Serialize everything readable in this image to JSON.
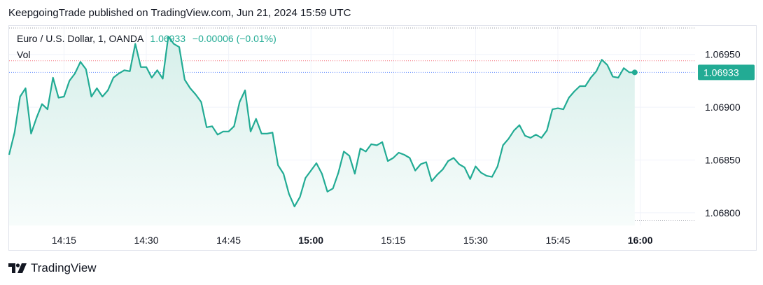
{
  "header": {
    "text": "KeepgoingTrade published on TradingView.com, Jun 21, 2024 15:59 UTC"
  },
  "legend": {
    "symbol": "Euro / U.S. Dollar, 1, OANDA",
    "price": "1.06933",
    "change": "−0.00006 (−0.01%)",
    "vol": "Vol"
  },
  "footer": {
    "brand": "TradingView",
    "logo_icon": "tradingview-logo-icon"
  },
  "colors": {
    "line": "#22ab94",
    "area_top": "#d6efea",
    "area_bottom": "#f7fcfb",
    "grid": "#f0f3fa",
    "text": "#131722",
    "ref_red": "#f23645",
    "ref_blue": "#2962ff"
  },
  "chart_data": {
    "type": "area",
    "title": "Euro / U.S. Dollar, 1, OANDA",
    "xlabel": "",
    "ylabel": "",
    "ylim": [
      1.06788,
      1.06977
    ],
    "xlim": [
      "14:05",
      "16:10"
    ],
    "x_ticks": [
      {
        "label": "14:15",
        "bold": false
      },
      {
        "label": "14:30",
        "bold": false
      },
      {
        "label": "14:45",
        "bold": false
      },
      {
        "label": "15:00",
        "bold": true
      },
      {
        "label": "15:15",
        "bold": false
      },
      {
        "label": "15:30",
        "bold": false
      },
      {
        "label": "15:45",
        "bold": false
      },
      {
        "label": "16:00",
        "bold": true
      }
    ],
    "y_ticks": [
      "1.06950",
      "1.06900",
      "1.06850",
      "1.06800"
    ],
    "last_price_label": "1.06933",
    "reference_lines": {
      "red": 1.06944,
      "blue": 1.06933,
      "top_dotted": 1.06975,
      "bottom_dotted": 1.06793
    },
    "grid": true,
    "series": [
      {
        "x": [
          "14:05",
          "14:06",
          "14:07",
          "14:08",
          "14:09",
          "14:10",
          "14:11",
          "14:12",
          "14:13",
          "14:14",
          "14:15",
          "14:16",
          "14:17",
          "14:18",
          "14:19",
          "14:20",
          "14:21",
          "14:22",
          "14:23",
          "14:24",
          "14:25",
          "14:26",
          "14:27",
          "14:28",
          "14:29",
          "14:30",
          "14:31",
          "14:32",
          "14:33",
          "14:34",
          "14:35",
          "14:36",
          "14:37",
          "14:38",
          "14:39",
          "14:40",
          "14:41",
          "14:42",
          "14:43",
          "14:44",
          "14:45",
          "14:46",
          "14:47",
          "14:48",
          "14:49",
          "14:50",
          "14:51",
          "14:52",
          "14:53",
          "14:54",
          "14:55",
          "14:56",
          "14:57",
          "14:58",
          "14:59",
          "15:00",
          "15:01",
          "15:02",
          "15:03",
          "15:04",
          "15:05",
          "15:06",
          "15:07",
          "15:08",
          "15:09",
          "15:10",
          "15:11",
          "15:12",
          "15:13",
          "15:14",
          "15:15",
          "15:16",
          "15:17",
          "15:18",
          "15:19",
          "15:20",
          "15:21",
          "15:22",
          "15:23",
          "15:24",
          "15:25",
          "15:26",
          "15:27",
          "15:28",
          "15:29",
          "15:30",
          "15:31",
          "15:32",
          "15:33",
          "15:34",
          "15:35",
          "15:36",
          "15:37",
          "15:38",
          "15:39",
          "15:40",
          "15:41",
          "15:42",
          "15:43",
          "15:44",
          "15:45",
          "15:46",
          "15:47",
          "15:48",
          "15:49",
          "15:50",
          "15:51",
          "15:52",
          "15:53",
          "15:54",
          "15:55",
          "15:56",
          "15:57",
          "15:58",
          "15:59"
        ],
        "values": [
          1.06855,
          1.06876,
          1.0691,
          1.06918,
          1.06875,
          1.0689,
          1.06903,
          1.06898,
          1.06928,
          1.06909,
          1.0691,
          1.06925,
          1.06932,
          1.06943,
          1.06936,
          1.0691,
          1.06918,
          1.0691,
          1.06916,
          1.06928,
          1.06932,
          1.06935,
          1.06934,
          1.0696,
          1.06938,
          1.06938,
          1.06928,
          1.06935,
          1.06927,
          1.06967,
          1.0696,
          1.06957,
          1.06926,
          1.06918,
          1.06912,
          1.06905,
          1.06881,
          1.06882,
          1.06874,
          1.06877,
          1.06877,
          1.06882,
          1.06905,
          1.06916,
          1.06877,
          1.06889,
          1.06875,
          1.06875,
          1.06876,
          1.06845,
          1.06837,
          1.06818,
          1.06806,
          1.06815,
          1.06833,
          1.0684,
          1.06847,
          1.06837,
          1.0682,
          1.06823,
          1.06838,
          1.06858,
          1.06854,
          1.06837,
          1.06861,
          1.06858,
          1.06865,
          1.06864,
          1.06867,
          1.06849,
          1.06852,
          1.06857,
          1.06855,
          1.06852,
          1.0684,
          1.06846,
          1.06848,
          1.0683,
          1.06836,
          1.06841,
          1.06849,
          1.06852,
          1.06846,
          1.06843,
          1.06832,
          1.06844,
          1.06838,
          1.06835,
          1.06834,
          1.06844,
          1.06864,
          1.0687,
          1.06878,
          1.06883,
          1.06873,
          1.06871,
          1.06874,
          1.06871,
          1.06878,
          1.06898,
          1.06899,
          1.06898,
          1.06909,
          1.06915,
          1.0692,
          1.0692,
          1.06928,
          1.06934,
          1.06945,
          1.0694,
          1.06929,
          1.06928,
          1.06937,
          1.06933,
          1.06933
        ]
      }
    ]
  }
}
